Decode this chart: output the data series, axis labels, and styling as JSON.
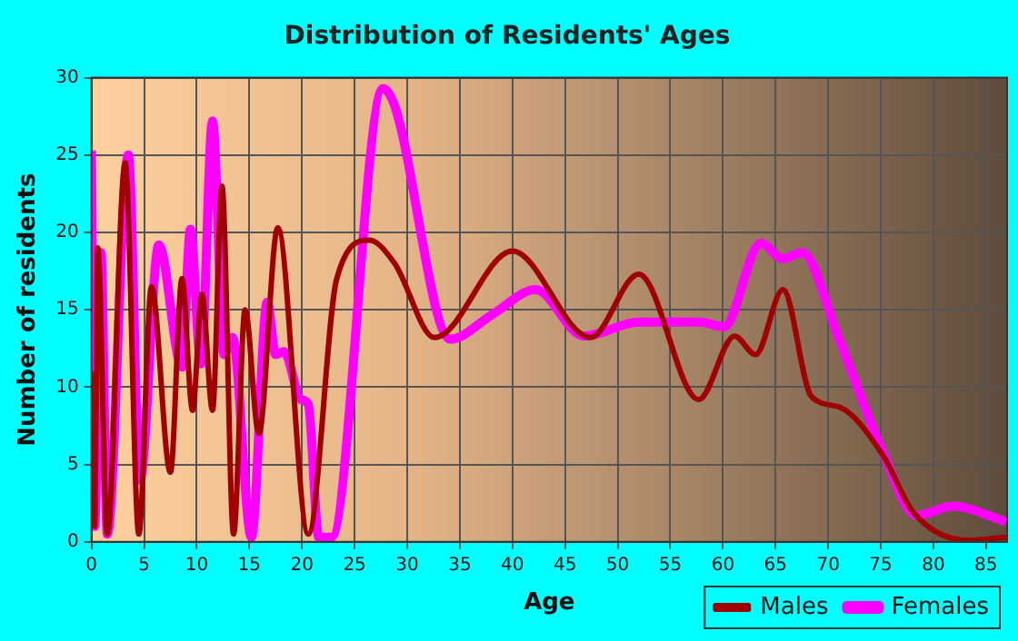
{
  "chart_data": {
    "type": "line",
    "title": "Distribution of Residents' Ages",
    "xlabel": "Age",
    "ylabel": "Number of residents",
    "xlim": [
      0,
      87
    ],
    "xticks": [
      0,
      5,
      10,
      15,
      20,
      25,
      30,
      35,
      40,
      45,
      50,
      55,
      60,
      65,
      70,
      75,
      80,
      85
    ],
    "ylim": [
      0,
      30
    ],
    "yticks": [
      0,
      5,
      10,
      15,
      20,
      25,
      30
    ],
    "grid": true,
    "legend": "bottom right",
    "marker": "none",
    "line_style": "solid",
    "series": [
      {
        "name": "Males",
        "color": "#a00000",
        "x": [
          0,
          0.3,
          0.6,
          1.5,
          3.2,
          4.5,
          5.7,
          7.5,
          8.6,
          9.6,
          10.5,
          11.5,
          12.4,
          13.5,
          14.6,
          15.9,
          17.7,
          20.6,
          23.3,
          26.4,
          28.8,
          32.6,
          40,
          47.4,
          52,
          57.7,
          61.1,
          63.1,
          65.7,
          68.4,
          71.1,
          75.2,
          78.1,
          83.3,
          86.9
        ],
        "values": [
          11,
          1,
          19,
          0.5,
          24.5,
          0.5,
          16.5,
          4.5,
          17,
          8.5,
          16,
          8.5,
          23,
          0.5,
          15,
          7,
          20.3,
          0.5,
          17,
          19.5,
          18,
          13.2,
          18.8,
          13.2,
          17.3,
          9.2,
          13.3,
          12.1,
          16.3,
          9.4,
          8.7,
          5.6,
          1.9,
          0.1,
          0.3
        ]
      },
      {
        "name": "Females",
        "color": "#ff00ff",
        "x": [
          0,
          0.3,
          0.9,
          1.5,
          3.5,
          4.6,
          6.4,
          8.6,
          9.4,
          10.4,
          11.5,
          12.6,
          13.4,
          15.2,
          16.7,
          17.5,
          18.3,
          19.9,
          20.6,
          21.6,
          22.8,
          27.7,
          28.8,
          34.1,
          38.1,
          42.2,
          46.8,
          52,
          57.8,
          60.1,
          63.6,
          65.7,
          67.5,
          71.1,
          75.2,
          78.4,
          81.8,
          86.9
        ],
        "values": [
          25.3,
          1,
          18.7,
          0.5,
          25,
          4,
          19.2,
          11.3,
          20.2,
          11.5,
          27.2,
          12.1,
          13.2,
          0.3,
          15.5,
          12.1,
          12.3,
          9.2,
          8.9,
          0.3,
          0.3,
          29.3,
          28.2,
          13.1,
          14.7,
          16.3,
          13.3,
          14.2,
          14.2,
          13.9,
          19.3,
          18.3,
          18.7,
          13,
          5.8,
          1.7,
          2.3,
          1.3
        ]
      }
    ]
  }
}
